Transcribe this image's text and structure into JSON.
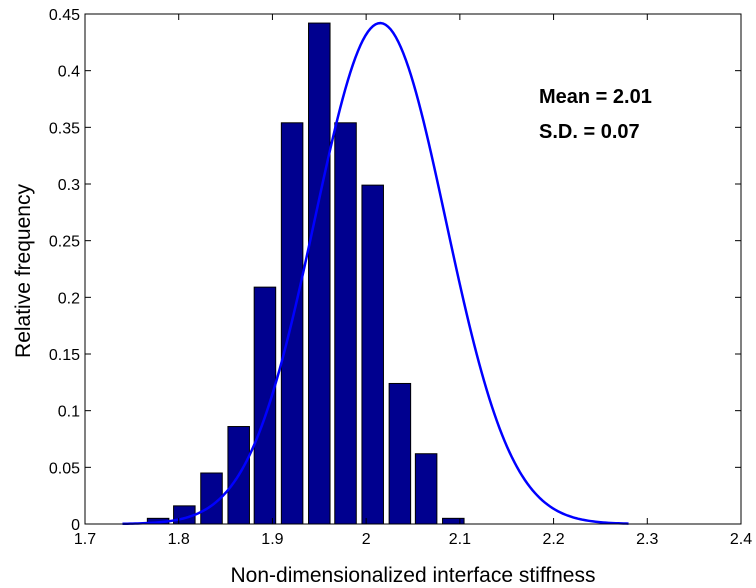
{
  "chart_data": {
    "type": "bar",
    "title": "",
    "xlabel": "Non-dimensionalized interface stiffness",
    "ylabel": "Relative frequency",
    "xlim": [
      1.7,
      2.4
    ],
    "ylim": [
      0,
      0.45
    ],
    "xticks": [
      "1.7",
      "1.8",
      "1.9",
      "2",
      "2.1",
      "2.2",
      "2.3",
      "2.4"
    ],
    "yticks": [
      "0",
      "0.05",
      "0.1",
      "0.15",
      "0.2",
      "0.25",
      "0.3",
      "0.35",
      "0.4",
      "0.45"
    ],
    "grid": false,
    "bin_centers": [
      1.778,
      1.806,
      1.835,
      1.864,
      1.892,
      1.921,
      1.95,
      1.978,
      2.007,
      2.036,
      2.064,
      2.093,
      2.122,
      2.15,
      2.179
    ],
    "values": [
      0.005,
      0.016,
      0.045,
      0.086,
      0.209,
      0.354,
      0.442,
      0.354,
      0.299,
      0.124,
      0.062,
      0.005
    ],
    "bar_centers": [
      1.778,
      1.806,
      1.835,
      1.864,
      1.892,
      1.921,
      1.95,
      1.978,
      2.007,
      2.036,
      2.064,
      2.093
    ],
    "bar_color": "#00008f",
    "curve": {
      "type": "normal-fit",
      "mean": 2.01,
      "sd": 0.07,
      "x_range": [
        1.74,
        2.28
      ],
      "color": "#0000ff"
    },
    "annotations": [
      "Mean = 2.01",
      "S.D. = 0.07"
    ]
  }
}
